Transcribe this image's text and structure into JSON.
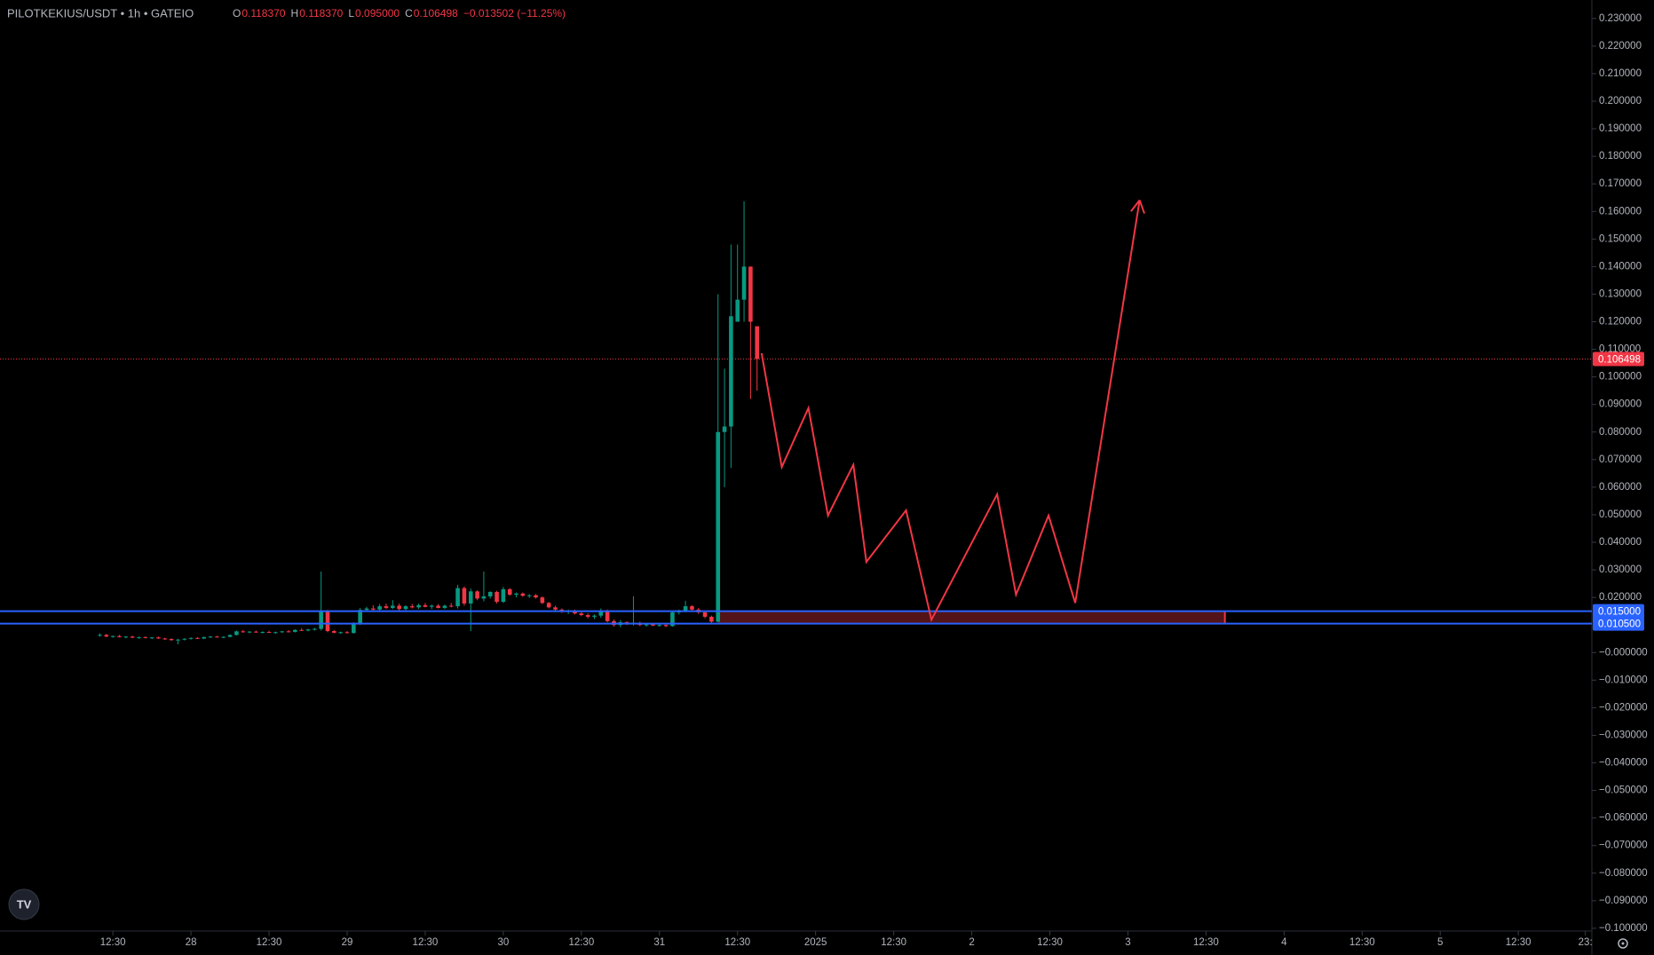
{
  "chart_data": {
    "type": "candlestick",
    "title": "PILOTKEKIUS/USDT • 1h • GATEIO",
    "ohlc_header": [
      {
        "key": "O",
        "text": "0.118370"
      },
      {
        "key": "H",
        "text": "0.118370"
      },
      {
        "key": "L",
        "text": "0.095000"
      },
      {
        "key": "C",
        "text": "0.106498"
      }
    ],
    "change": "−0.013502 (−11.25%)",
    "up_color": "#089981",
    "down_color": "#f23645",
    "xlim": [
      -29.35,
      215.3
    ],
    "ylim": [
      -0.101,
      0.2367
    ],
    "xticks": [
      {
        "value": -12,
        "label": "12:30"
      },
      {
        "value": 0,
        "label": "28"
      },
      {
        "value": 12,
        "label": "12:30"
      },
      {
        "value": 24,
        "label": "29"
      },
      {
        "value": 36,
        "label": "12:30"
      },
      {
        "value": 48,
        "label": "30"
      },
      {
        "value": 60,
        "label": "12:30"
      },
      {
        "value": 72,
        "label": "31"
      },
      {
        "value": 84,
        "label": "12:30"
      },
      {
        "value": 96,
        "label": "2025"
      },
      {
        "value": 108,
        "label": "12:30"
      },
      {
        "value": 120,
        "label": "2"
      },
      {
        "value": 132,
        "label": "12:30"
      },
      {
        "value": 144,
        "label": "3"
      },
      {
        "value": 156,
        "label": "12:30"
      },
      {
        "value": 168,
        "label": "4"
      },
      {
        "value": 180,
        "label": "12:30"
      },
      {
        "value": 192,
        "label": "5"
      },
      {
        "value": 204,
        "label": "12:30"
      },
      {
        "value": 214.3,
        "label": "23:"
      }
    ],
    "yticks": [
      {
        "value": 0.23,
        "label": "0.230000"
      },
      {
        "value": 0.22,
        "label": "0.220000"
      },
      {
        "value": 0.21,
        "label": "0.210000"
      },
      {
        "value": 0.2,
        "label": "0.200000"
      },
      {
        "value": 0.19,
        "label": "0.190000"
      },
      {
        "value": 0.18,
        "label": "0.180000"
      },
      {
        "value": 0.17,
        "label": "0.170000"
      },
      {
        "value": 0.16,
        "label": "0.160000"
      },
      {
        "value": 0.15,
        "label": "0.150000"
      },
      {
        "value": 0.14,
        "label": "0.140000"
      },
      {
        "value": 0.13,
        "label": "0.130000"
      },
      {
        "value": 0.12,
        "label": "0.120000"
      },
      {
        "value": 0.11,
        "label": "0.110000"
      },
      {
        "value": 0.1,
        "label": "0.100000"
      },
      {
        "value": 0.09,
        "label": "0.090000"
      },
      {
        "value": 0.08,
        "label": "0.080000"
      },
      {
        "value": 0.07,
        "label": "0.070000"
      },
      {
        "value": 0.06,
        "label": "0.060000"
      },
      {
        "value": 0.05,
        "label": "0.050000"
      },
      {
        "value": 0.04,
        "label": "0.040000"
      },
      {
        "value": 0.03,
        "label": "0.030000"
      },
      {
        "value": 0.02,
        "label": "0.020000"
      },
      {
        "value": 0,
        "label": "−0.000000"
      },
      {
        "value": -0.01,
        "label": "−0.010000"
      },
      {
        "value": -0.02,
        "label": "−0.020000"
      },
      {
        "value": -0.03,
        "label": "−0.030000"
      },
      {
        "value": -0.04,
        "label": "−0.040000"
      },
      {
        "value": -0.05,
        "label": "−0.050000"
      },
      {
        "value": -0.06,
        "label": "−0.060000"
      },
      {
        "value": -0.07,
        "label": "−0.070000"
      },
      {
        "value": -0.08,
        "label": "−0.080000"
      },
      {
        "value": -0.09,
        "label": "−0.090000"
      },
      {
        "value": -0.1,
        "label": "−0.100000"
      }
    ],
    "x": [
      -14,
      -13,
      -12,
      -11,
      -10,
      -9,
      -8,
      -7,
      -6,
      -5,
      -4,
      -3,
      -2,
      -1,
      0,
      1,
      2,
      3,
      4,
      5,
      6,
      7,
      8,
      9,
      10,
      11,
      12,
      13,
      14,
      15,
      16,
      17,
      18,
      19,
      20,
      21,
      22,
      23,
      24,
      25,
      26,
      27,
      28,
      29,
      30,
      31,
      32,
      33,
      34,
      35,
      36,
      37,
      38,
      39,
      40,
      41,
      42,
      43,
      44,
      45,
      46,
      47,
      48,
      49,
      50,
      51,
      52,
      53,
      54,
      55,
      56,
      57,
      58,
      59,
      60,
      61,
      62,
      63,
      64,
      65,
      66,
      67,
      68,
      69,
      70,
      71,
      72,
      73,
      74,
      75,
      76,
      77,
      78,
      79,
      80,
      81,
      82,
      83,
      84,
      85,
      86,
      87
    ],
    "ohlc": [
      [
        0.0062,
        0.007,
        0.0058,
        0.0064
      ],
      [
        0.0064,
        0.0068,
        0.0056,
        0.0058
      ],
      [
        0.0058,
        0.0062,
        0.0054,
        0.006
      ],
      [
        0.006,
        0.0064,
        0.0055,
        0.0056
      ],
      [
        0.0056,
        0.006,
        0.0052,
        0.0058
      ],
      [
        0.0058,
        0.0061,
        0.0053,
        0.0054
      ],
      [
        0.0054,
        0.0058,
        0.005,
        0.0056
      ],
      [
        0.0056,
        0.0059,
        0.0052,
        0.0053
      ],
      [
        0.0053,
        0.0056,
        0.0049,
        0.0055
      ],
      [
        0.0055,
        0.0058,
        0.005,
        0.0051
      ],
      [
        0.0051,
        0.0054,
        0.0046,
        0.0049
      ],
      [
        0.0049,
        0.0052,
        0.0043,
        0.0045
      ],
      [
        0.0045,
        0.005,
        0.003,
        0.0047
      ],
      [
        0.0047,
        0.0052,
        0.0044,
        0.005
      ],
      [
        0.005,
        0.0055,
        0.0047,
        0.0053
      ],
      [
        0.0053,
        0.0056,
        0.0049,
        0.0051
      ],
      [
        0.0051,
        0.0058,
        0.0049,
        0.0056
      ],
      [
        0.0056,
        0.006,
        0.0053,
        0.0058
      ],
      [
        0.0058,
        0.0061,
        0.0054,
        0.0055
      ],
      [
        0.0055,
        0.0059,
        0.0052,
        0.0057
      ],
      [
        0.0057,
        0.0066,
        0.0055,
        0.0064
      ],
      [
        0.0064,
        0.008,
        0.0062,
        0.0077
      ],
      [
        0.0077,
        0.0082,
        0.0072,
        0.0074
      ],
      [
        0.0074,
        0.0078,
        0.007,
        0.0076
      ],
      [
        0.0076,
        0.008,
        0.0072,
        0.0073
      ],
      [
        0.0073,
        0.0077,
        0.0069,
        0.0075
      ],
      [
        0.0075,
        0.0079,
        0.0071,
        0.0072
      ],
      [
        0.0072,
        0.0076,
        0.0068,
        0.0074
      ],
      [
        0.0074,
        0.0079,
        0.0071,
        0.0077
      ],
      [
        0.0077,
        0.0082,
        0.0073,
        0.0075
      ],
      [
        0.0075,
        0.0085,
        0.0073,
        0.0082
      ],
      [
        0.0082,
        0.0088,
        0.0078,
        0.008
      ],
      [
        0.008,
        0.0086,
        0.0077,
        0.0084
      ],
      [
        0.0084,
        0.009,
        0.008,
        0.0086
      ],
      [
        0.0086,
        0.0294,
        0.008,
        0.0152
      ],
      [
        0.0152,
        0.0155,
        0.0074,
        0.0078
      ],
      [
        0.0078,
        0.0082,
        0.007,
        0.0072
      ],
      [
        0.0072,
        0.0076,
        0.0068,
        0.0074
      ],
      [
        0.0074,
        0.0078,
        0.0069,
        0.0071
      ],
      [
        0.0071,
        0.011,
        0.0069,
        0.0105
      ],
      [
        0.0105,
        0.0162,
        0.01,
        0.0155
      ],
      [
        0.0155,
        0.0166,
        0.0148,
        0.016
      ],
      [
        0.016,
        0.0172,
        0.0152,
        0.0156
      ],
      [
        0.0156,
        0.0176,
        0.015,
        0.0168
      ],
      [
        0.0168,
        0.0178,
        0.0158,
        0.0162
      ],
      [
        0.0162,
        0.019,
        0.0158,
        0.017
      ],
      [
        0.017,
        0.0178,
        0.0152,
        0.0158
      ],
      [
        0.0158,
        0.0172,
        0.0154,
        0.0168
      ],
      [
        0.0168,
        0.0176,
        0.016,
        0.0164
      ],
      [
        0.0164,
        0.0178,
        0.0158,
        0.0172
      ],
      [
        0.0172,
        0.018,
        0.0164,
        0.0166
      ],
      [
        0.0166,
        0.0174,
        0.0158,
        0.017
      ],
      [
        0.017,
        0.0176,
        0.016,
        0.0162
      ],
      [
        0.0162,
        0.0174,
        0.0158,
        0.017
      ],
      [
        0.017,
        0.018,
        0.0164,
        0.0168
      ],
      [
        0.0168,
        0.0246,
        0.016,
        0.0234
      ],
      [
        0.0234,
        0.024,
        0.017,
        0.0178
      ],
      [
        0.0178,
        0.0232,
        0.0078,
        0.0222
      ],
      [
        0.0222,
        0.0226,
        0.019,
        0.0196
      ],
      [
        0.0196,
        0.0294,
        0.0186,
        0.0204
      ],
      [
        0.0204,
        0.0222,
        0.0196,
        0.022
      ],
      [
        0.022,
        0.0224,
        0.0178,
        0.0184
      ],
      [
        0.0184,
        0.0238,
        0.018,
        0.023
      ],
      [
        0.023,
        0.0234,
        0.0206,
        0.021
      ],
      [
        0.021,
        0.0218,
        0.02,
        0.0214
      ],
      [
        0.0214,
        0.0218,
        0.0202,
        0.0206
      ],
      [
        0.0206,
        0.0212,
        0.0198,
        0.0208
      ],
      [
        0.0208,
        0.0212,
        0.0196,
        0.02
      ],
      [
        0.02,
        0.0204,
        0.0176,
        0.018
      ],
      [
        0.018,
        0.0184,
        0.016,
        0.0164
      ],
      [
        0.0164,
        0.017,
        0.015,
        0.0156
      ],
      [
        0.0156,
        0.016,
        0.0144,
        0.0148
      ],
      [
        0.0148,
        0.0156,
        0.014,
        0.0152
      ],
      [
        0.0152,
        0.0156,
        0.0138,
        0.0142
      ],
      [
        0.0142,
        0.0148,
        0.0132,
        0.0136
      ],
      [
        0.0136,
        0.0142,
        0.0124,
        0.013
      ],
      [
        0.013,
        0.0138,
        0.0122,
        0.0134
      ],
      [
        0.0134,
        0.016,
        0.0126,
        0.0152
      ],
      [
        0.0152,
        0.0156,
        0.011,
        0.0114
      ],
      [
        0.0114,
        0.012,
        0.0094,
        0.01
      ],
      [
        0.01,
        0.0118,
        0.0092,
        0.011
      ],
      [
        0.011,
        0.0114,
        0.01,
        0.0104
      ],
      [
        0.0104,
        0.0204,
        0.0098,
        0.0108
      ],
      [
        0.0108,
        0.0112,
        0.0096,
        0.01
      ],
      [
        0.01,
        0.0106,
        0.0094,
        0.0102
      ],
      [
        0.0102,
        0.0106,
        0.0096,
        0.0098
      ],
      [
        0.0098,
        0.0104,
        0.0094,
        0.01
      ],
      [
        0.01,
        0.0104,
        0.0092,
        0.0096
      ],
      [
        0.0096,
        0.015,
        0.0094,
        0.0146
      ],
      [
        0.0146,
        0.0156,
        0.0138,
        0.015
      ],
      [
        0.015,
        0.0188,
        0.0146,
        0.0168
      ],
      [
        0.0168,
        0.0172,
        0.015,
        0.0156
      ],
      [
        0.0156,
        0.0162,
        0.014,
        0.0146
      ],
      [
        0.0146,
        0.015,
        0.0124,
        0.013
      ],
      [
        0.013,
        0.0134,
        0.0106,
        0.0112
      ],
      [
        0.0112,
        0.13,
        0.011,
        0.08
      ],
      [
        0.08,
        0.103,
        0.06,
        0.082
      ],
      [
        0.082,
        0.148,
        0.067,
        0.122
      ],
      [
        0.12,
        0.148,
        0.12,
        0.128
      ],
      [
        0.128,
        0.1637,
        0.12,
        0.14
      ],
      [
        0.14,
        0.14,
        0.092,
        0.12
      ],
      [
        0.11837,
        0.11837,
        0.095,
        0.106498
      ]
    ],
    "price_line": {
      "value": 0.106498,
      "label": "0.106498",
      "color": "#f23645"
    },
    "levels": [
      {
        "value": 0.015,
        "label": "0.015000"
      },
      {
        "value": 0.0105,
        "label": "0.010500"
      }
    ],
    "level_color": "#2962ff",
    "zone": {
      "x": [
        81,
        158.9
      ],
      "y": [
        0.0105,
        0.015
      ],
      "color": "#f23645"
    },
    "drawing": {
      "color": "#f23645",
      "x": [
        87.7,
        90.8,
        94.9,
        97.9,
        101.8,
        103.8,
        109.9,
        113.8,
        123.9,
        126.8,
        131.8,
        135.9,
        145.8
      ],
      "y": [
        0.1086,
        0.0673,
        0.0887,
        0.0497,
        0.0681,
        0.0329,
        0.0516,
        0.0119,
        0.0574,
        0.021,
        0.0497,
        0.018,
        0.1641
      ]
    }
  }
}
